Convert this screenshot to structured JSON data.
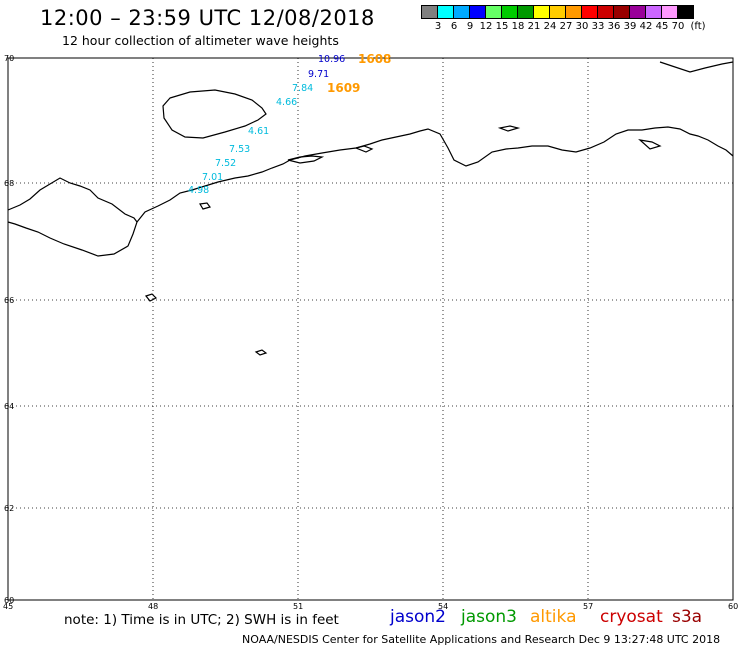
{
  "title": "12:00 – 23:59 UTC 12/08/2018",
  "subtitle": "12 hour collection of altimeter wave heights",
  "scale": {
    "colors": [
      "#808080",
      "#00ffff",
      "#00aaff",
      "#0000ff",
      "#66ff66",
      "#00cc00",
      "#009900",
      "#ffff00",
      "#ffcc00",
      "#ff9900",
      "#ff0000",
      "#cc0000",
      "#990000",
      "#990099",
      "#cc66ff",
      "#ff99ff",
      "#000000"
    ],
    "labels": [
      "3",
      "6",
      "9",
      "12",
      "15",
      "18",
      "21",
      "24",
      "27",
      "30",
      "33",
      "36",
      "39",
      "42",
      "45",
      "70",
      "(ft)"
    ]
  },
  "map": {
    "lat_ticks": [
      "70",
      "68",
      "66",
      "64",
      "62",
      "60"
    ],
    "lon_ticks": [
      "45",
      "48",
      "51",
      "54",
      "57",
      "60"
    ],
    "wave_heights": [
      {
        "text": "10.96",
        "color": "#0000cc"
      },
      {
        "text": "9.71",
        "color": "#0000cc"
      },
      {
        "text": "7.84",
        "color": "#00bbdd"
      },
      {
        "text": "4.66",
        "color": "#00bbdd"
      },
      {
        "text": "4.61",
        "color": "#00bbdd"
      },
      {
        "text": "7.53",
        "color": "#00bbdd"
      },
      {
        "text": "7.52",
        "color": "#00bbdd"
      },
      {
        "text": "7.01",
        "color": "#00bbdd"
      },
      {
        "text": "4.98",
        "color": "#00bbdd"
      }
    ],
    "times": [
      {
        "text": "1608",
        "color": "#ff9900"
      },
      {
        "text": "1609",
        "color": "#ff9900"
      }
    ]
  },
  "note": "note:  1) Time is in UTC;  2) SWH is in feet",
  "satellites": [
    {
      "name": "jason2",
      "color": "#0000cc"
    },
    {
      "name": "jason3",
      "color": "#009900"
    },
    {
      "name": "altika",
      "color": "#ff9900"
    },
    {
      "name": "cryosat",
      "color": "#cc0000"
    },
    {
      "name": "s3a",
      "color": "#990000"
    }
  ],
  "footer": "NOAA/NESDIS Center for Satellite Applications and Research     Dec  9 13:27:48 UTC 2018"
}
